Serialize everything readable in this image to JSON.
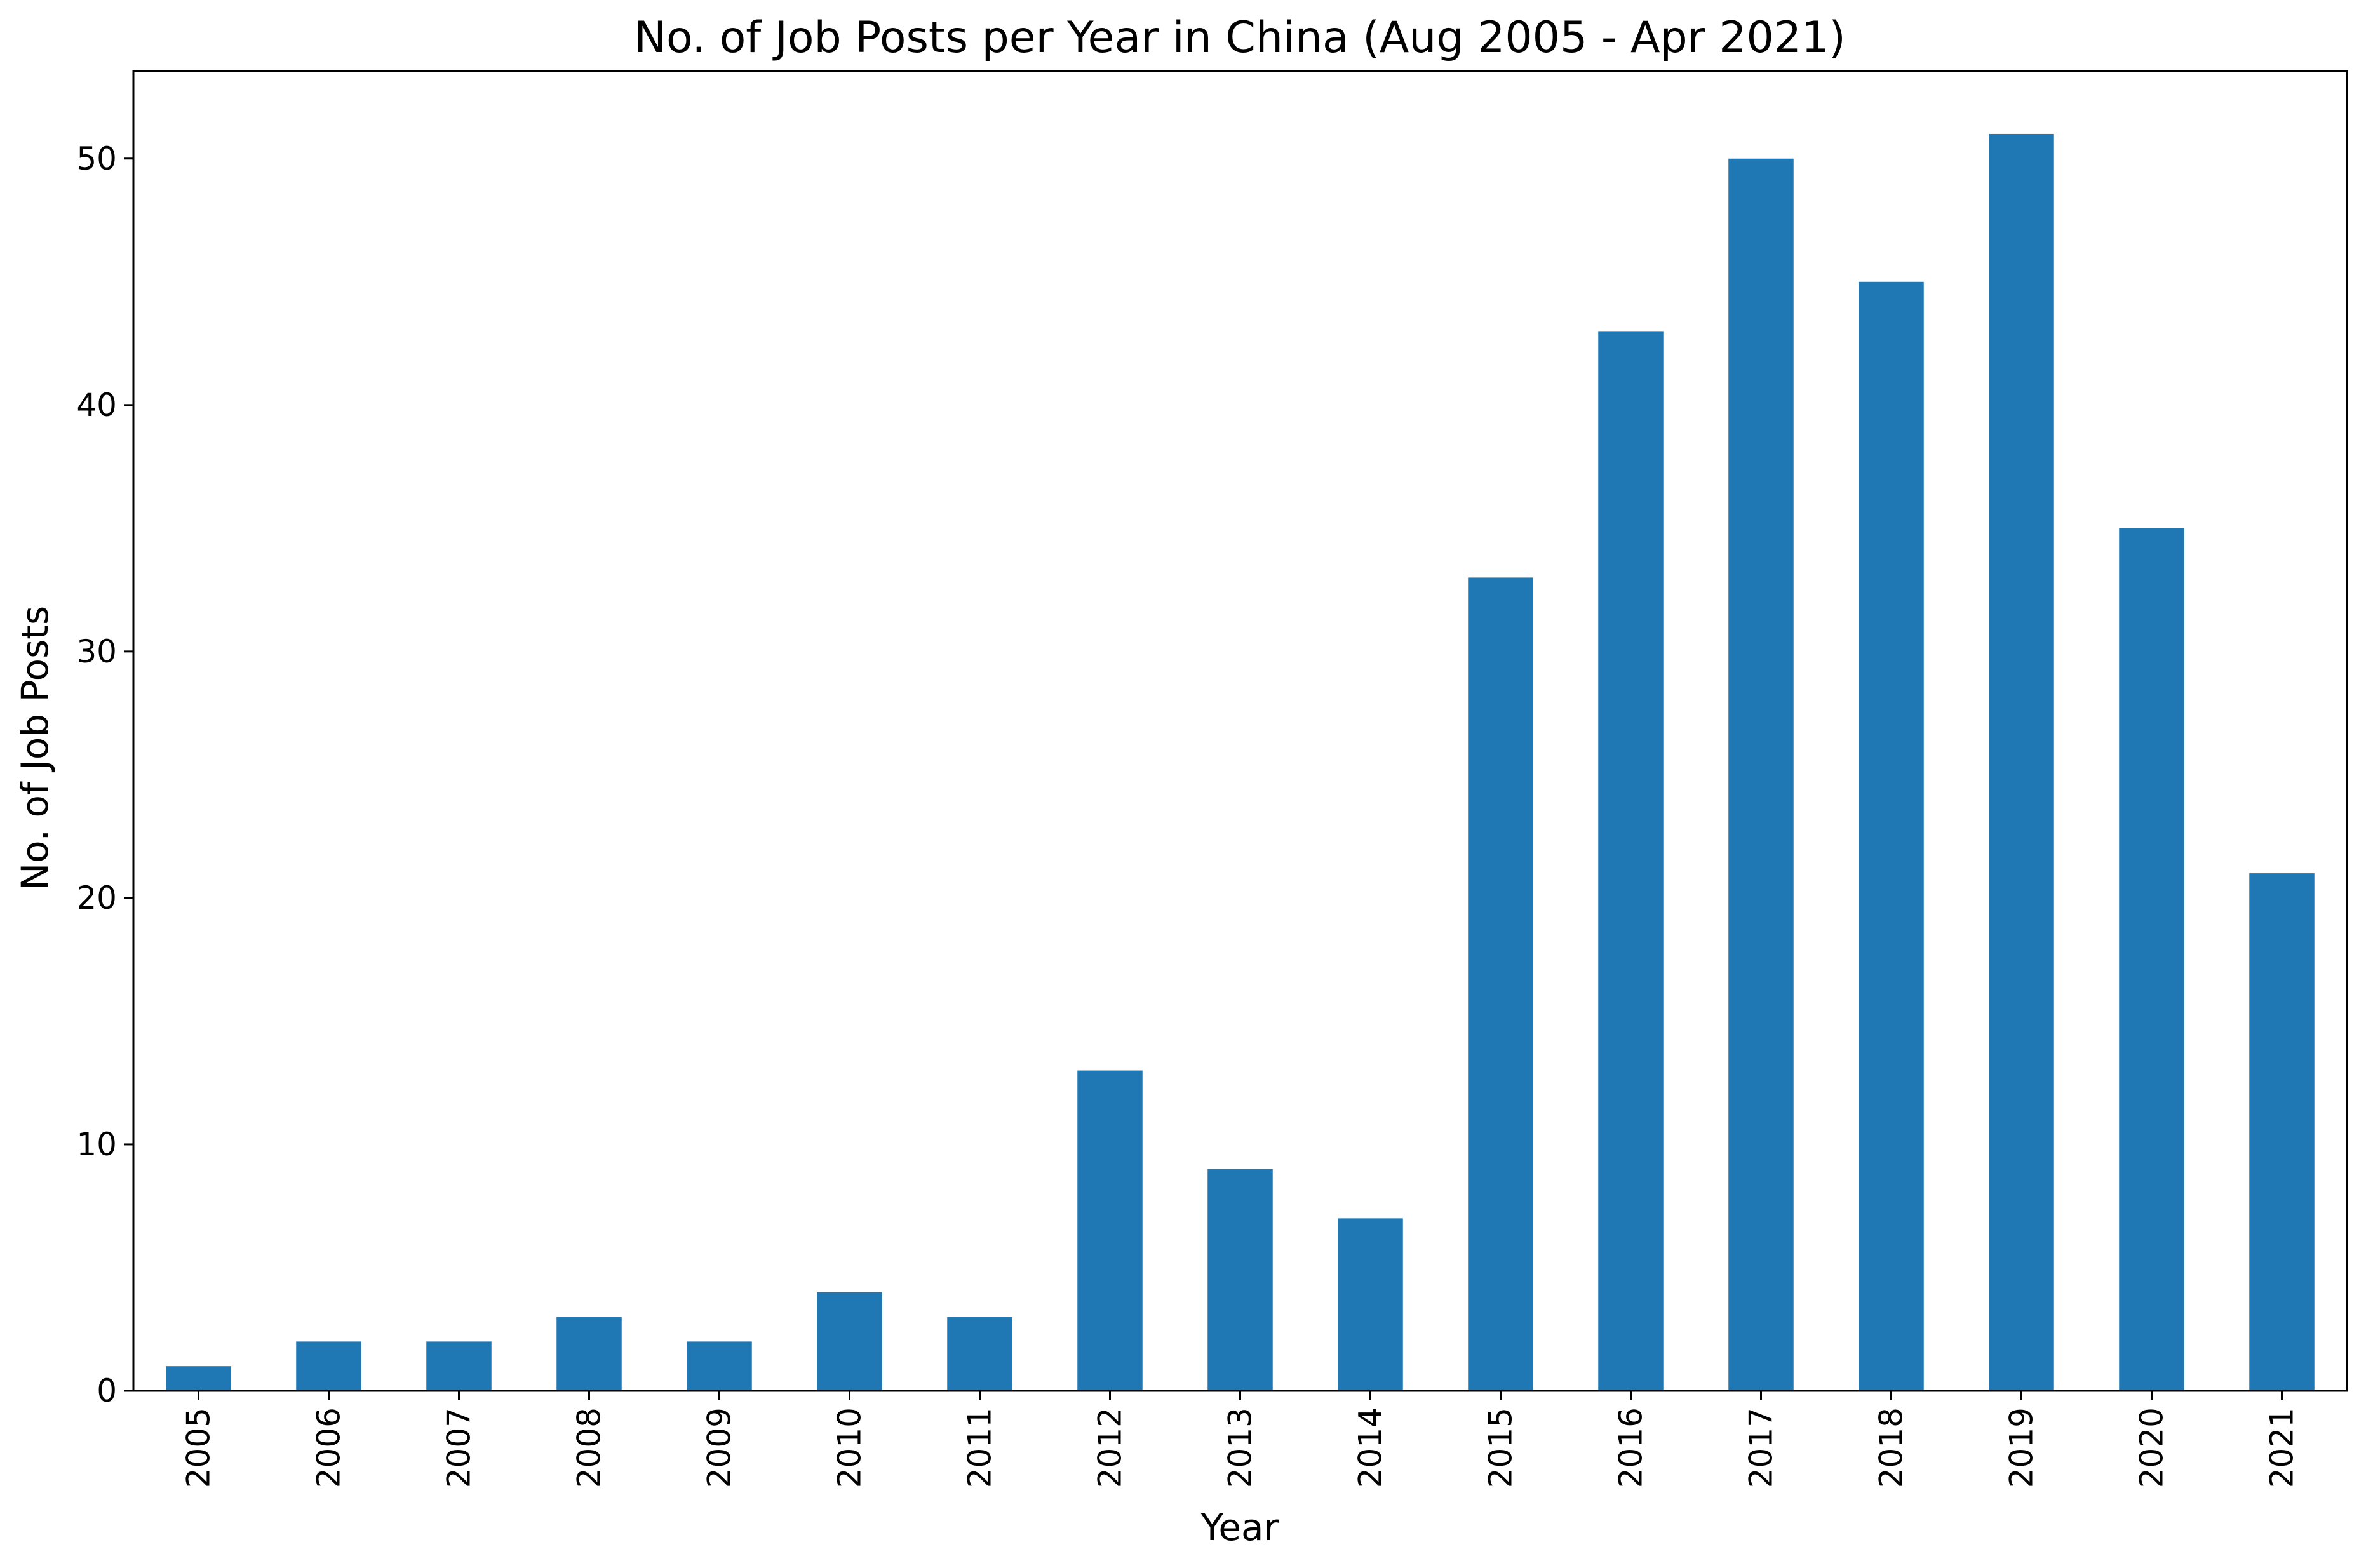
{
  "chart_data": {
    "type": "bar",
    "title": "No. of Job Posts per Year in China (Aug 2005 - Apr 2021)",
    "xlabel": "Year",
    "ylabel": "No. of Job Posts",
    "categories": [
      "2005",
      "2006",
      "2007",
      "2008",
      "2009",
      "2010",
      "2011",
      "2012",
      "2013",
      "2014",
      "2015",
      "2016",
      "2017",
      "2018",
      "2019",
      "2020",
      "2021"
    ],
    "values": [
      1,
      2,
      2,
      3,
      2,
      4,
      3,
      13,
      9,
      7,
      33,
      43,
      50,
      45,
      51,
      35,
      21
    ],
    "ylim": [
      0,
      53.55
    ],
    "yticks": [
      0,
      10,
      20,
      30,
      40,
      50
    ],
    "ytick_labels": [
      "0",
      "10",
      "20",
      "30",
      "40",
      "50"
    ],
    "grid": false,
    "legend": "none",
    "bar_color": "#1f77b4",
    "x_tick_rotation": "vertical"
  }
}
